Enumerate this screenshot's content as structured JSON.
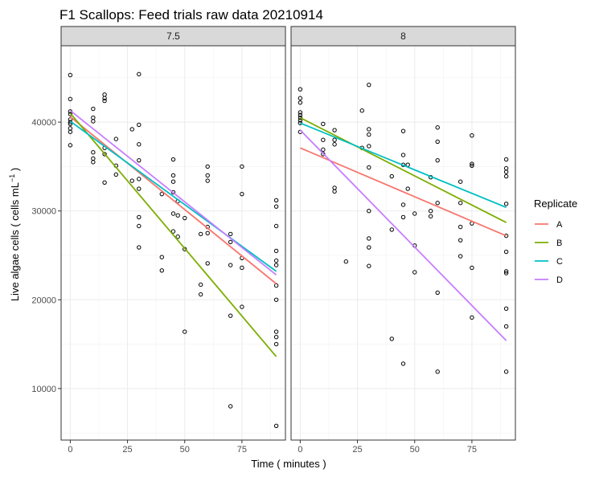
{
  "chart_data": {
    "type": "scatter",
    "title": "F1 Scallops: Feed trials raw data 20210914",
    "xlabel": "Time ( minutes )",
    "ylabel_main": "Live algae cells ( cells mL",
    "ylabel_sup": "−1",
    "ylabel_tail": " )",
    "xlim": [
      -4,
      94
    ],
    "ylim": [
      4200,
      48600
    ],
    "x_ticks": [
      0,
      25,
      50,
      75
    ],
    "y_ticks": [
      10000,
      20000,
      30000,
      40000
    ],
    "x_tick_labels": [
      "0",
      "25",
      "50",
      "75"
    ],
    "y_tick_labels": [
      "10000",
      "20000",
      "30000",
      "40000"
    ],
    "grid": true,
    "legend": {
      "title": "Replicate",
      "position": "right",
      "entries": [
        {
          "label": "A",
          "color": "#F8766D"
        },
        {
          "label": "B",
          "color": "#7CAE00"
        },
        {
          "label": "C",
          "color": "#00BFC4"
        },
        {
          "label": "D",
          "color": "#C77CFF"
        }
      ]
    },
    "panels": [
      {
        "strip": "7.5",
        "points": [
          [
            0,
            45300
          ],
          [
            0,
            42600
          ],
          [
            0,
            41200
          ],
          [
            0,
            40900
          ],
          [
            0,
            40300
          ],
          [
            0,
            40000
          ],
          [
            0,
            39800
          ],
          [
            0,
            39300
          ],
          [
            0,
            38900
          ],
          [
            0,
            37400
          ],
          [
            10,
            41500
          ],
          [
            10,
            40500
          ],
          [
            10,
            40100
          ],
          [
            10,
            36600
          ],
          [
            10,
            35900
          ],
          [
            10,
            35500
          ],
          [
            15,
            43100
          ],
          [
            15,
            42700
          ],
          [
            15,
            42400
          ],
          [
            15,
            37100
          ],
          [
            15,
            36400
          ],
          [
            15,
            33200
          ],
          [
            20,
            38100
          ],
          [
            20,
            35100
          ],
          [
            20,
            34100
          ],
          [
            27,
            39200
          ],
          [
            27,
            33400
          ],
          [
            30,
            45400
          ],
          [
            30,
            39700
          ],
          [
            30,
            37500
          ],
          [
            30,
            35700
          ],
          [
            30,
            33600
          ],
          [
            30,
            32500
          ],
          [
            30,
            29300
          ],
          [
            30,
            28300
          ],
          [
            30,
            25900
          ],
          [
            40,
            31900
          ],
          [
            40,
            24800
          ],
          [
            40,
            23300
          ],
          [
            45,
            35800
          ],
          [
            45,
            34000
          ],
          [
            45,
            33300
          ],
          [
            45,
            32100
          ],
          [
            45,
            29700
          ],
          [
            45,
            27700
          ],
          [
            47,
            31100
          ],
          [
            47,
            29500
          ],
          [
            47,
            27100
          ],
          [
            50,
            29200
          ],
          [
            50,
            25700
          ],
          [
            50,
            16400
          ],
          [
            57,
            27400
          ],
          [
            57,
            21700
          ],
          [
            57,
            20600
          ],
          [
            60,
            35000
          ],
          [
            60,
            34000
          ],
          [
            60,
            33400
          ],
          [
            60,
            28200
          ],
          [
            60,
            27500
          ],
          [
            60,
            24100
          ],
          [
            70,
            27400
          ],
          [
            70,
            26500
          ],
          [
            70,
            23900
          ],
          [
            70,
            18200
          ],
          [
            70,
            8000
          ],
          [
            75,
            35000
          ],
          [
            75,
            31900
          ],
          [
            75,
            24700
          ],
          [
            75,
            23600
          ],
          [
            75,
            19200
          ],
          [
            90,
            31200
          ],
          [
            90,
            30500
          ],
          [
            90,
            28300
          ],
          [
            90,
            25500
          ],
          [
            90,
            24400
          ],
          [
            90,
            23900
          ],
          [
            90,
            21600
          ],
          [
            90,
            20000
          ],
          [
            90,
            16400
          ],
          [
            90,
            15800
          ],
          [
            90,
            15000
          ],
          [
            90,
            5800
          ]
        ],
        "lines": [
          {
            "replicate": "A",
            "x": [
              0,
              90
            ],
            "y": [
              40600,
              21800
            ]
          },
          {
            "replicate": "B",
            "x": [
              0,
              90
            ],
            "y": [
              41000,
              13600
            ]
          },
          {
            "replicate": "C",
            "x": [
              0,
              90
            ],
            "y": [
              40100,
              23200
            ]
          },
          {
            "replicate": "D",
            "x": [
              0,
              90
            ],
            "y": [
              41300,
              22800
            ]
          }
        ]
      },
      {
        "strip": "8",
        "points": [
          [
            0,
            43700
          ],
          [
            0,
            42700
          ],
          [
            0,
            42200
          ],
          [
            0,
            41100
          ],
          [
            0,
            40800
          ],
          [
            0,
            40500
          ],
          [
            0,
            40200
          ],
          [
            0,
            39900
          ],
          [
            0,
            38900
          ],
          [
            10,
            39800
          ],
          [
            10,
            38000
          ],
          [
            10,
            36900
          ],
          [
            10,
            36400
          ],
          [
            15,
            39100
          ],
          [
            15,
            38000
          ],
          [
            15,
            37500
          ],
          [
            15,
            32600
          ],
          [
            15,
            32200
          ],
          [
            20,
            24300
          ],
          [
            27,
            41300
          ],
          [
            27,
            37100
          ],
          [
            30,
            44200
          ],
          [
            30,
            39200
          ],
          [
            30,
            38600
          ],
          [
            30,
            37300
          ],
          [
            30,
            34900
          ],
          [
            30,
            30000
          ],
          [
            30,
            26900
          ],
          [
            30,
            25900
          ],
          [
            30,
            23800
          ],
          [
            40,
            33900
          ],
          [
            40,
            27900
          ],
          [
            40,
            15600
          ],
          [
            45,
            39000
          ],
          [
            45,
            36300
          ],
          [
            45,
            35200
          ],
          [
            45,
            30700
          ],
          [
            45,
            29300
          ],
          [
            45,
            12800
          ],
          [
            47,
            35200
          ],
          [
            47,
            32500
          ],
          [
            50,
            29700
          ],
          [
            50,
            26100
          ],
          [
            50,
            23100
          ],
          [
            57,
            33800
          ],
          [
            57,
            30000
          ],
          [
            57,
            29400
          ],
          [
            60,
            39400
          ],
          [
            60,
            37800
          ],
          [
            60,
            35700
          ],
          [
            60,
            30900
          ],
          [
            60,
            20800
          ],
          [
            60,
            11900
          ],
          [
            70,
            33300
          ],
          [
            70,
            30900
          ],
          [
            70,
            28200
          ],
          [
            70,
            26700
          ],
          [
            70,
            24900
          ],
          [
            75,
            38500
          ],
          [
            75,
            35300
          ],
          [
            75,
            35100
          ],
          [
            75,
            28600
          ],
          [
            75,
            23600
          ],
          [
            75,
            18000
          ],
          [
            90,
            35800
          ],
          [
            90,
            34800
          ],
          [
            90,
            34400
          ],
          [
            90,
            33900
          ],
          [
            90,
            30800
          ],
          [
            90,
            27200
          ],
          [
            90,
            25400
          ],
          [
            90,
            23200
          ],
          [
            90,
            23000
          ],
          [
            90,
            19000
          ],
          [
            90,
            17000
          ],
          [
            90,
            11900
          ]
        ],
        "lines": [
          {
            "replicate": "A",
            "x": [
              0,
              90
            ],
            "y": [
              37100,
              27200
            ]
          },
          {
            "replicate": "B",
            "x": [
              0,
              90
            ],
            "y": [
              40500,
              28700
            ]
          },
          {
            "replicate": "C",
            "x": [
              0,
              90
            ],
            "y": [
              39900,
              30400
            ]
          },
          {
            "replicate": "D",
            "x": [
              0,
              90
            ],
            "y": [
              39100,
              15400
            ]
          }
        ]
      }
    ]
  }
}
